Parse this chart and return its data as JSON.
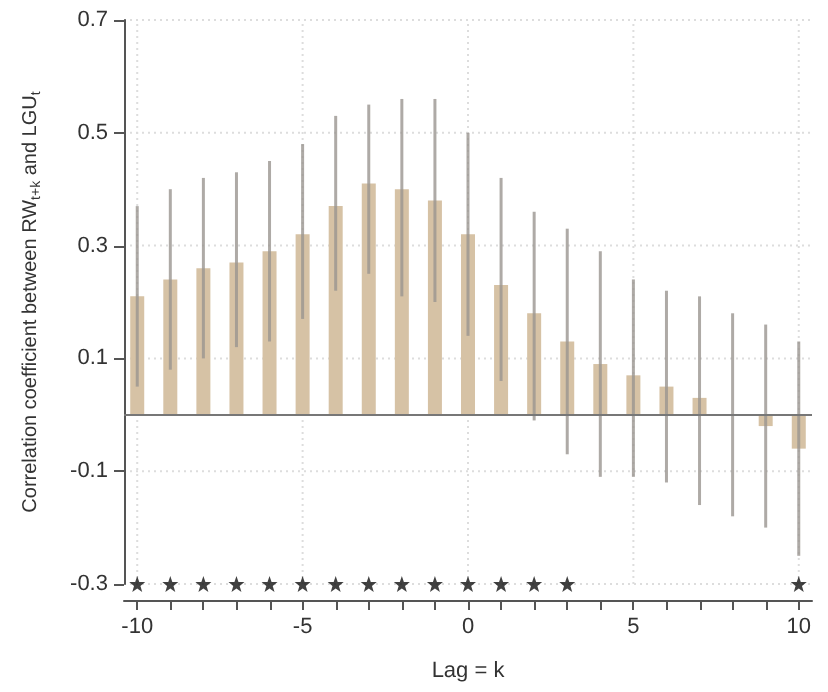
{
  "chart_data": {
    "type": "bar",
    "xlabel": "Lag = k",
    "ylabel": "Correlation coefficient between RW$_{t+k}$ and LGU$_{t}$",
    "x": [
      -10,
      -9,
      -8,
      -7,
      -6,
      -5,
      -4,
      -3,
      -2,
      -1,
      0,
      1,
      2,
      3,
      4,
      5,
      6,
      7,
      8,
      9,
      10
    ],
    "series": [
      {
        "color": "#d6c2a5",
        "values": [
          0.21,
          0.24,
          0.26,
          0.27,
          0.29,
          0.32,
          0.37,
          0.41,
          0.4,
          0.38,
          0.32,
          0.23,
          0.18,
          0.13,
          0.09,
          0.07,
          0.05,
          0.03,
          0.0,
          -0.02,
          -0.06
        ],
        "errors": [
          [
            0.05,
            0.37
          ],
          [
            0.08,
            0.4
          ],
          [
            0.1,
            0.42
          ],
          [
            0.12,
            0.43
          ],
          [
            0.13,
            0.45
          ],
          [
            0.17,
            0.48
          ],
          [
            0.22,
            0.53
          ],
          [
            0.25,
            0.55
          ],
          [
            0.21,
            0.56
          ],
          [
            0.2,
            0.56
          ],
          [
            0.14,
            0.5
          ],
          [
            0.06,
            0.42
          ],
          [
            -0.01,
            0.36
          ],
          [
            -0.07,
            0.33
          ],
          [
            -0.11,
            0.29
          ],
          [
            -0.11,
            0.24
          ],
          [
            -0.12,
            0.22
          ],
          [
            -0.16,
            0.21
          ],
          [
            -0.18,
            0.18
          ],
          [
            -0.2,
            0.16
          ],
          [
            -0.25,
            0.13
          ]
        ]
      },
      {
        "type": "scatter",
        "color": "#111111",
        "marker": "star",
        "x": [
          -10,
          -9,
          -8,
          -7,
          -6,
          -5,
          -4,
          -3,
          -2,
          -1,
          0,
          1,
          2,
          3,
          10
        ],
        "values": [
          -0.3,
          -0.3,
          -0.3,
          -0.3,
          -0.3,
          -0.3,
          -0.3,
          -0.3,
          -0.3,
          -0.3,
          -0.3,
          -0.3,
          -0.3,
          -0.3,
          -0.3
        ]
      }
    ],
    "xlim": [
      -10.4,
      10.4
    ],
    "xticks": [
      -10,
      {
        "value": -9,
        "label": null
      },
      {
        "value": -8,
        "label": null
      },
      {
        "value": -7,
        "label": null
      },
      {
        "value": -6,
        "label": null
      },
      -5,
      {
        "value": -4,
        "label": null
      },
      {
        "value": -3,
        "label": null
      },
      {
        "value": -2,
        "label": null
      },
      {
        "value": -1,
        "label": null
      },
      0,
      {
        "value": 1,
        "label": null
      },
      {
        "value": 2,
        "label": null
      },
      {
        "value": 3,
        "label": null
      },
      {
        "value": 4,
        "label": null
      },
      5,
      {
        "value": 6,
        "label": null
      },
      {
        "value": 7,
        "label": null
      },
      {
        "value": 8,
        "label": null
      },
      {
        "value": 9,
        "label": null
      },
      10
    ],
    "ylim": [
      -0.3,
      0.7
    ],
    "yticks": [
      -0.3,
      -0.1,
      0.1,
      0.3,
      0.5,
      0.7
    ],
    "grid": true,
    "ref_lines": [
      {
        "axis": "y",
        "value": 0,
        "color": "#777777"
      }
    ]
  }
}
